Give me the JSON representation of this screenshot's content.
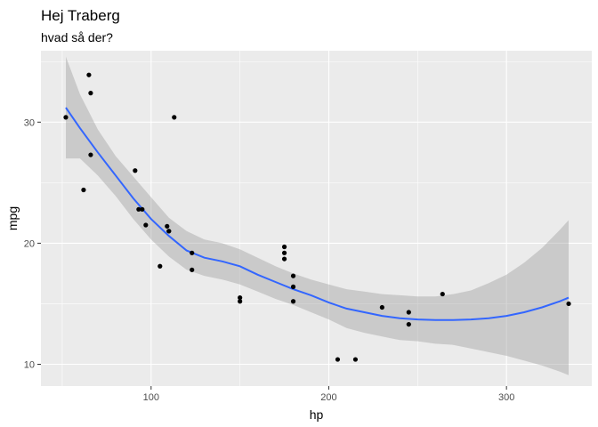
{
  "chart_data": {
    "type": "scatter",
    "title": "Hej Traberg",
    "subtitle": "hvad så der?",
    "xlabel": "hp",
    "ylabel": "mpg",
    "xlim": [
      38,
      348
    ],
    "ylim": [
      8.2,
      35.9
    ],
    "x_ticks": [
      100,
      200,
      300
    ],
    "y_ticks": [
      10,
      20,
      30
    ],
    "x_tick_labels": [
      "100",
      "200",
      "300"
    ],
    "y_tick_labels": [
      "10",
      "20",
      "30"
    ],
    "grid": true,
    "colors": {
      "panel": "#ebebeb",
      "grid": "#ffffff",
      "points": "#000000",
      "smooth_line": "#3366ff",
      "ribbon": "#999999"
    },
    "points": [
      {
        "x": 52,
        "y": 30.4
      },
      {
        "x": 62,
        "y": 24.4
      },
      {
        "x": 65,
        "y": 33.9
      },
      {
        "x": 66,
        "y": 32.4
      },
      {
        "x": 66,
        "y": 27.3
      },
      {
        "x": 91,
        "y": 26.0
      },
      {
        "x": 93,
        "y": 22.8
      },
      {
        "x": 95,
        "y": 22.8
      },
      {
        "x": 97,
        "y": 21.5
      },
      {
        "x": 105,
        "y": 18.1
      },
      {
        "x": 109,
        "y": 21.4
      },
      {
        "x": 110,
        "y": 21.0
      },
      {
        "x": 110,
        "y": 21.0
      },
      {
        "x": 113,
        "y": 30.4
      },
      {
        "x": 123,
        "y": 19.2
      },
      {
        "x": 123,
        "y": 17.8
      },
      {
        "x": 150,
        "y": 15.5
      },
      {
        "x": 150,
        "y": 15.2
      },
      {
        "x": 175,
        "y": 19.7
      },
      {
        "x": 175,
        "y": 19.2
      },
      {
        "x": 175,
        "y": 18.7
      },
      {
        "x": 180,
        "y": 17.3
      },
      {
        "x": 180,
        "y": 16.4
      },
      {
        "x": 180,
        "y": 15.2
      },
      {
        "x": 205,
        "y": 10.4
      },
      {
        "x": 215,
        "y": 10.4
      },
      {
        "x": 230,
        "y": 14.7
      },
      {
        "x": 245,
        "y": 14.3
      },
      {
        "x": 245,
        "y": 13.3
      },
      {
        "x": 264,
        "y": 15.8
      },
      {
        "x": 335,
        "y": 15.0
      }
    ],
    "smooth": [
      {
        "x": 52,
        "y": 31.2,
        "lo": 27.0,
        "hi": 35.4
      },
      {
        "x": 60,
        "y": 29.5,
        "lo": 27.0,
        "hi": 32.3
      },
      {
        "x": 70,
        "y": 27.5,
        "lo": 25.6,
        "hi": 29.4
      },
      {
        "x": 80,
        "y": 25.6,
        "lo": 23.9,
        "hi": 27.2
      },
      {
        "x": 90,
        "y": 23.7,
        "lo": 22.0,
        "hi": 25.5
      },
      {
        "x": 100,
        "y": 22.0,
        "lo": 20.3,
        "hi": 23.8
      },
      {
        "x": 110,
        "y": 20.6,
        "lo": 18.9,
        "hi": 22.1
      },
      {
        "x": 120,
        "y": 19.4,
        "lo": 17.8,
        "hi": 21.0
      },
      {
        "x": 130,
        "y": 18.8,
        "lo": 17.3,
        "hi": 20.3
      },
      {
        "x": 140,
        "y": 18.5,
        "lo": 17.0,
        "hi": 20.0
      },
      {
        "x": 150,
        "y": 18.1,
        "lo": 16.6,
        "hi": 19.5
      },
      {
        "x": 160,
        "y": 17.4,
        "lo": 16.0,
        "hi": 18.8
      },
      {
        "x": 170,
        "y": 16.8,
        "lo": 15.4,
        "hi": 18.1
      },
      {
        "x": 180,
        "y": 16.2,
        "lo": 14.9,
        "hi": 17.5
      },
      {
        "x": 190,
        "y": 15.7,
        "lo": 14.3,
        "hi": 17.0
      },
      {
        "x": 200,
        "y": 15.1,
        "lo": 13.7,
        "hi": 16.6
      },
      {
        "x": 210,
        "y": 14.6,
        "lo": 13.0,
        "hi": 16.2
      },
      {
        "x": 220,
        "y": 14.3,
        "lo": 12.6,
        "hi": 16.0
      },
      {
        "x": 230,
        "y": 14.0,
        "lo": 12.3,
        "hi": 15.8
      },
      {
        "x": 240,
        "y": 13.8,
        "lo": 12.0,
        "hi": 15.7
      },
      {
        "x": 250,
        "y": 13.7,
        "lo": 11.9,
        "hi": 15.6
      },
      {
        "x": 260,
        "y": 13.65,
        "lo": 11.7,
        "hi": 15.6
      },
      {
        "x": 270,
        "y": 13.65,
        "lo": 11.6,
        "hi": 15.8
      },
      {
        "x": 280,
        "y": 13.7,
        "lo": 11.3,
        "hi": 16.1
      },
      {
        "x": 290,
        "y": 13.8,
        "lo": 11.0,
        "hi": 16.7
      },
      {
        "x": 300,
        "y": 14.0,
        "lo": 10.7,
        "hi": 17.4
      },
      {
        "x": 310,
        "y": 14.3,
        "lo": 10.3,
        "hi": 18.4
      },
      {
        "x": 320,
        "y": 14.7,
        "lo": 9.9,
        "hi": 19.6
      },
      {
        "x": 330,
        "y": 15.2,
        "lo": 9.4,
        "hi": 21.1
      },
      {
        "x": 335,
        "y": 15.5,
        "lo": 9.1,
        "hi": 21.9
      }
    ]
  }
}
